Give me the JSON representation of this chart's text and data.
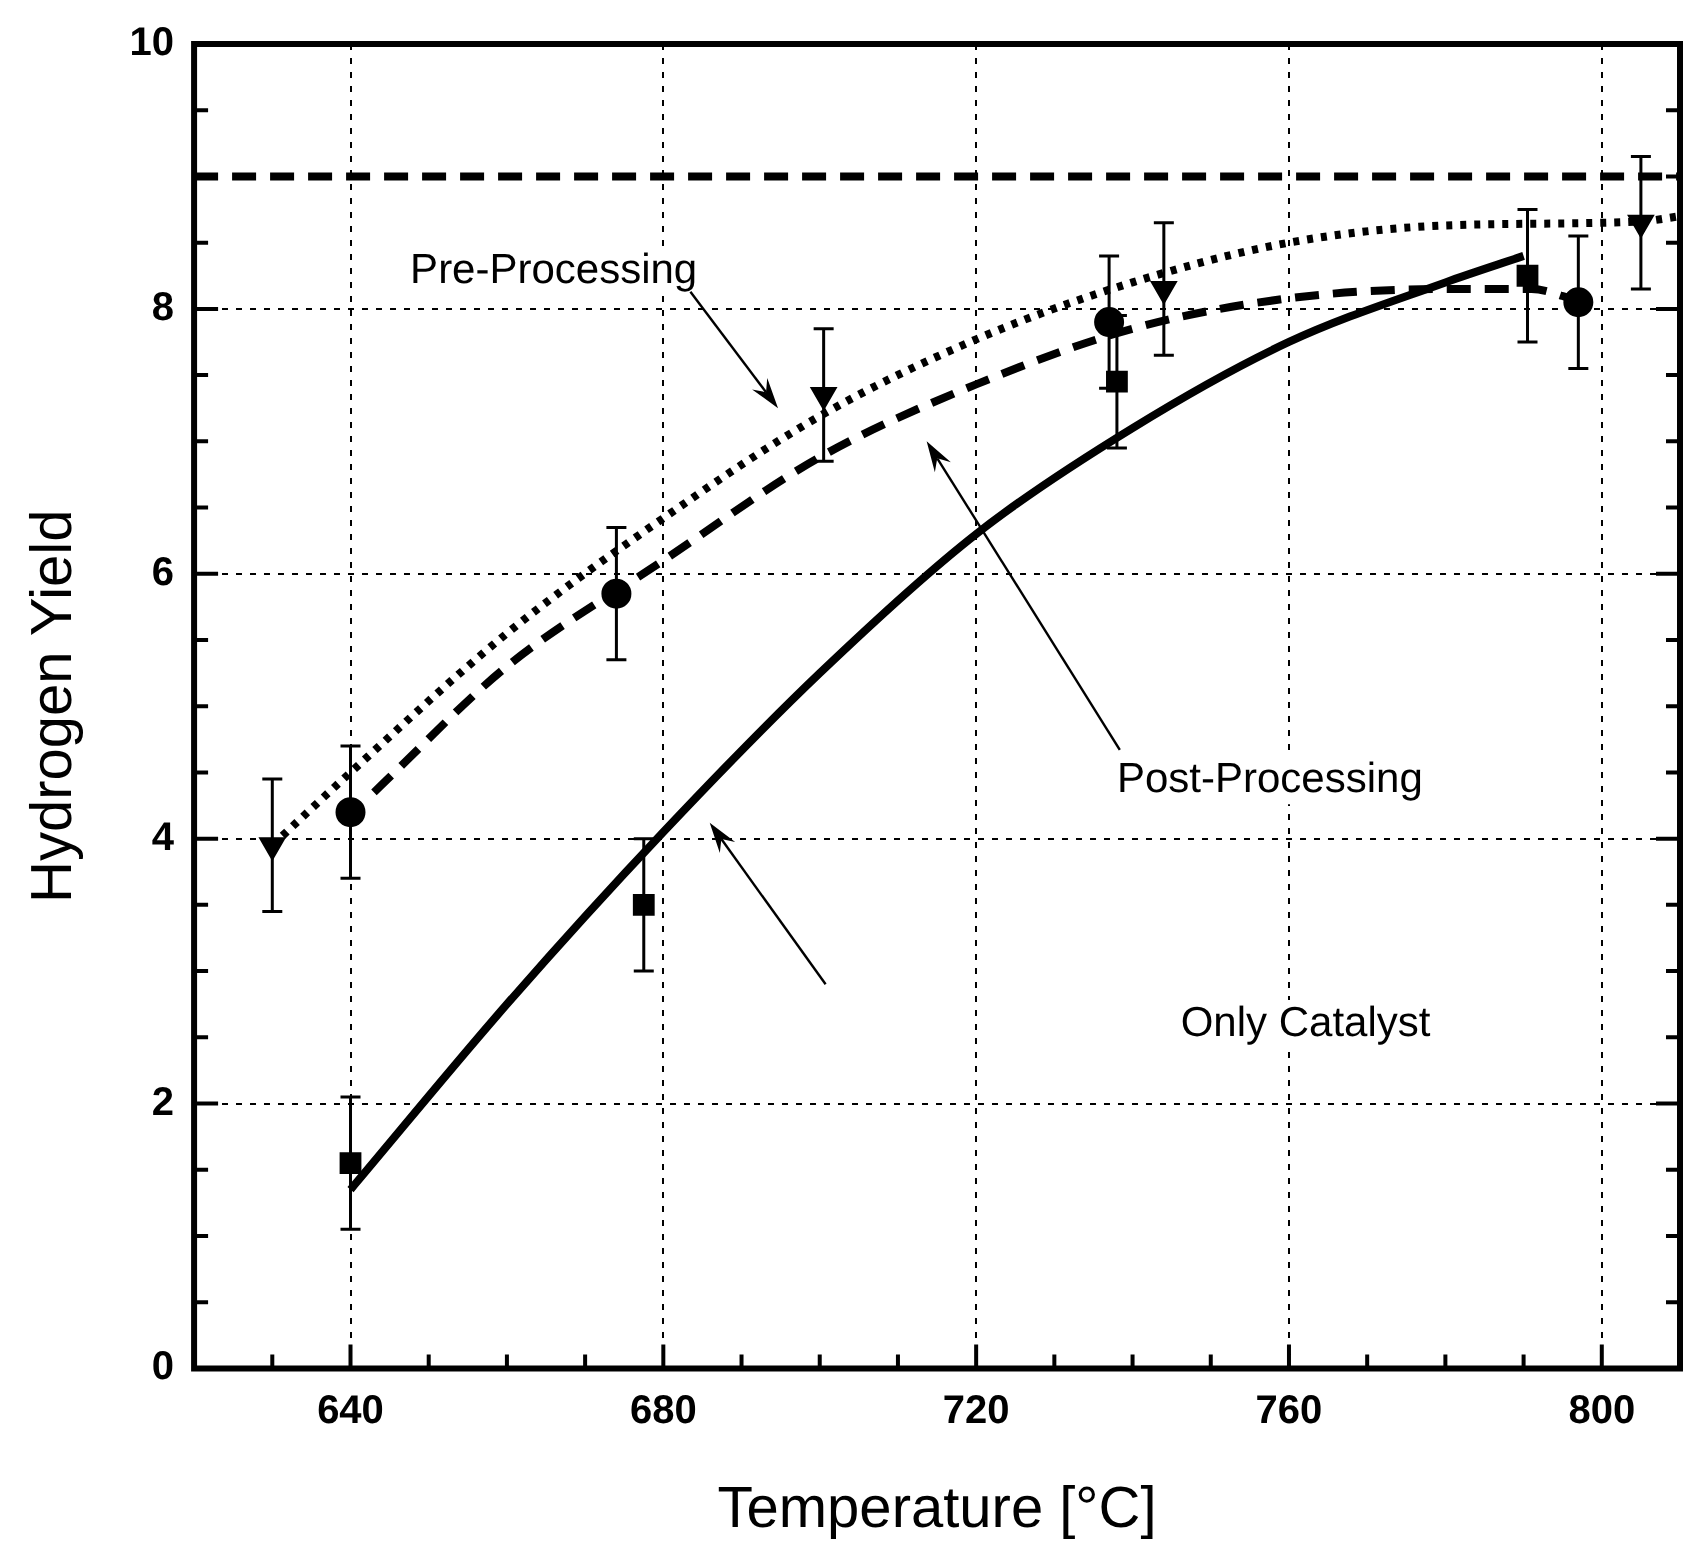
{
  "chart_data": {
    "type": "scatter",
    "xlabel": "Temperature [°C]",
    "ylabel": "Hydrogen Yield",
    "xlim": [
      620,
      810
    ],
    "xticks": [
      640,
      680,
      720,
      760,
      800
    ],
    "ylim": [
      0,
      10
    ],
    "yticks": [
      0,
      2,
      4,
      6,
      8,
      10
    ],
    "grid": true,
    "legend": false,
    "series": [
      {
        "color": "#000000",
        "marker": "triangle",
        "x": [
          630,
          700.5,
          744,
          805
        ],
        "values": [
          3.95,
          7.35,
          8.15,
          8.65
        ],
        "errors": [
          0.5,
          0.5,
          0.5,
          0.5
        ]
      },
      {
        "color": "#000000",
        "marker": "circle",
        "x": [
          640,
          674,
          737,
          797
        ],
        "values": [
          4.2,
          5.85,
          7.9,
          8.05
        ],
        "errors": [
          0.5,
          0.5,
          0.5,
          0.5
        ]
      },
      {
        "color": "#000000",
        "marker": "square",
        "x": [
          640,
          677.5,
          738,
          790.5
        ],
        "values": [
          1.55,
          3.5,
          7.45,
          8.25
        ],
        "errors": [
          0.5,
          0.5,
          0.5,
          0.5
        ]
      },
      {
        "type": "line",
        "color": "#000000",
        "marker": "none",
        "line_style": "dotted",
        "x": [
          630,
          640,
          660,
          680,
          700,
          720,
          740,
          760,
          780,
          805,
          810
        ],
        "values": [
          3.95,
          4.5,
          5.55,
          6.42,
          7.19,
          7.77,
          8.2,
          8.5,
          8.63,
          8.66,
          8.7
        ]
      },
      {
        "type": "line",
        "color": "#000000",
        "marker": "none",
        "line_style": "dashed",
        "x": [
          643,
          660,
          680,
          700,
          720,
          740,
          760,
          780,
          791,
          797
        ],
        "values": [
          4.35,
          5.3,
          6.1,
          6.88,
          7.43,
          7.85,
          8.08,
          8.15,
          8.15,
          8.06
        ]
      },
      {
        "type": "line",
        "color": "#000000",
        "marker": "none",
        "line_style": "solid",
        "x": [
          640,
          660,
          680,
          700,
          720,
          740,
          760,
          780,
          790
        ],
        "values": [
          1.35,
          2.75,
          4.05,
          5.25,
          6.3,
          7.1,
          7.75,
          8.2,
          8.4
        ]
      }
    ],
    "ref_lines": [
      {
        "axis": "y",
        "value": 9,
        "color": "#000000",
        "line_style": "dashed"
      }
    ],
    "annotations": [
      "Pre-Processing",
      "Post-Processing",
      "Only Catalyst"
    ]
  }
}
